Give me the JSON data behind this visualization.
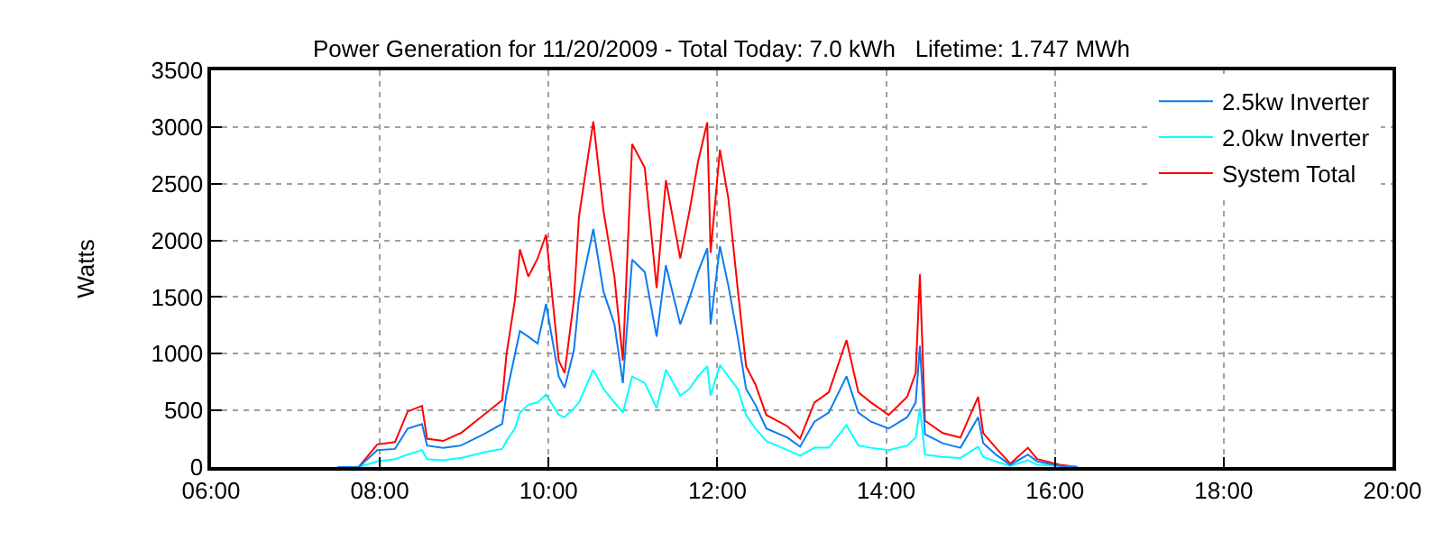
{
  "chart_data": {
    "type": "line",
    "title": "Power Generation for 11/20/2009 - Total Today: 7.0 kWh   Lifetime: 1.747 MWh",
    "ylabel": "Watts",
    "x": [
      7.5,
      7.75,
      7.97,
      8.18,
      8.33,
      8.5,
      8.56,
      8.75,
      8.96,
      9.23,
      9.45,
      9.5,
      9.6,
      9.66,
      9.76,
      9.87,
      9.97,
      10.12,
      10.19,
      10.3,
      10.36,
      10.53,
      10.65,
      10.78,
      10.88,
      10.99,
      11.14,
      11.28,
      11.39,
      11.56,
      11.67,
      11.77,
      11.88,
      11.92,
      12.03,
      12.13,
      12.24,
      12.34,
      12.45,
      12.58,
      12.83,
      12.98,
      13.15,
      13.32,
      13.53,
      13.67,
      13.82,
      14.03,
      14.25,
      14.35,
      14.4,
      14.46,
      14.67,
      14.88,
      15.09,
      15.15,
      15.3,
      15.47,
      15.68,
      15.79,
      16.06,
      16.27
    ],
    "series": [
      {
        "name": "2.5kw Inverter",
        "color": "#0a7cf0",
        "values": [
          0,
          0,
          150,
          160,
          340,
          380,
          190,
          170,
          190,
          290,
          380,
          640,
          990,
          1200,
          1150,
          1090,
          1440,
          800,
          700,
          1030,
          1490,
          2100,
          1550,
          1260,
          740,
          1830,
          1720,
          1150,
          1780,
          1260,
          1490,
          1720,
          1930,
          1260,
          1950,
          1600,
          1150,
          690,
          550,
          340,
          260,
          180,
          400,
          480,
          800,
          480,
          400,
          340,
          440,
          570,
          1070,
          290,
          210,
          170,
          440,
          210,
          110,
          20,
          110,
          50,
          10,
          0
        ]
      },
      {
        "name": "2.0kw Inverter",
        "color": "#00ffff",
        "values": [
          0,
          0,
          50,
          70,
          110,
          150,
          70,
          60,
          80,
          130,
          160,
          230,
          340,
          480,
          550,
          570,
          640,
          460,
          440,
          520,
          570,
          860,
          690,
          570,
          480,
          800,
          740,
          520,
          860,
          630,
          690,
          800,
          890,
          630,
          900,
          800,
          690,
          460,
          340,
          230,
          150,
          100,
          170,
          170,
          370,
          190,
          170,
          150,
          190,
          260,
          520,
          110,
          90,
          80,
          180,
          90,
          50,
          10,
          60,
          20,
          10,
          0
        ]
      },
      {
        "name": "System Total",
        "color": "#ff0000",
        "values": [
          0,
          0,
          200,
          220,
          490,
          540,
          250,
          230,
          300,
          460,
          590,
          990,
          1470,
          1920,
          1680,
          1840,
          2050,
          940,
          830,
          1470,
          2210,
          3050,
          2260,
          1680,
          940,
          2850,
          2640,
          1580,
          2530,
          1840,
          2260,
          2690,
          3040,
          1890,
          2800,
          2370,
          1580,
          890,
          730,
          460,
          360,
          250,
          570,
          660,
          1120,
          660,
          570,
          460,
          620,
          830,
          1700,
          410,
          300,
          260,
          620,
          300,
          170,
          30,
          170,
          70,
          20,
          0
        ]
      }
    ],
    "xlim": [
      6,
      20
    ],
    "xticks": [
      {
        "value": 6,
        "label": "06:00"
      },
      {
        "value": 8,
        "label": "08:00"
      },
      {
        "value": 10,
        "label": "10:00"
      },
      {
        "value": 12,
        "label": "12:00"
      },
      {
        "value": 14,
        "label": "14:00"
      },
      {
        "value": 16,
        "label": "16:00"
      },
      {
        "value": 18,
        "label": "18:00"
      },
      {
        "value": 20,
        "label": "20:00"
      }
    ],
    "ylim": [
      0,
      3500
    ],
    "yticks": [
      0,
      500,
      1000,
      1500,
      2000,
      2500,
      3000,
      3500
    ],
    "grid": true,
    "legend": "top right",
    "marker": "none",
    "line_style": "solid"
  }
}
